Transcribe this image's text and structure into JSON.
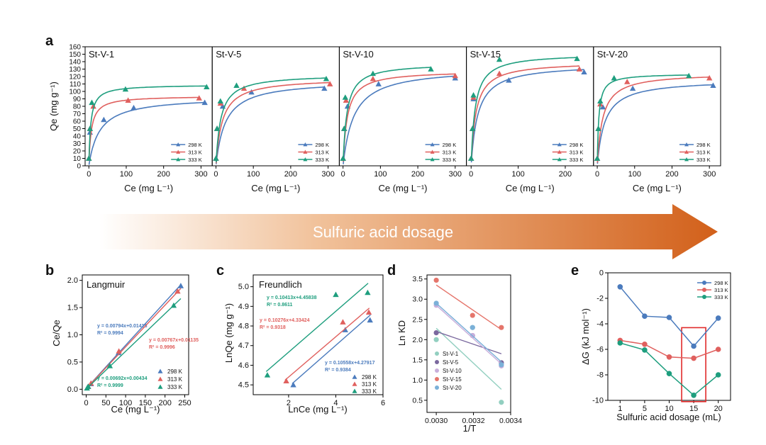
{
  "colors": {
    "k298": "#4b7bbd",
    "k313": "#e0605e",
    "k333": "#1e9e7e",
    "arrow": "#d86a1f",
    "highlight": "#e02a2a"
  },
  "banner": {
    "text": "Sulfuric acid dosage"
  },
  "chart_data": [
    {
      "id": "a",
      "type": "scatter+line",
      "label": "a",
      "ylabel": "Qe (mg g⁻¹)",
      "xlabel": "Ce (mg L⁻¹)",
      "ylim": [
        0,
        160
      ],
      "yticks": [
        0,
        10,
        20,
        30,
        40,
        50,
        60,
        70,
        80,
        90,
        100,
        110,
        120,
        130,
        140,
        150,
        160
      ],
      "legend": [
        "298 K",
        "313 K",
        "333 K"
      ],
      "panels": [
        {
          "name": "St-V-1",
          "xlim": [
            -10,
            330
          ],
          "xticks": [
            0,
            100,
            200,
            300
          ],
          "series": [
            {
              "name": "298 K",
              "x": [
                0,
                3,
                40,
                120,
                310
              ],
              "y": [
                10,
                45,
                62,
                78,
                85
              ],
              "qmax": 93,
              "b": 0.035
            },
            {
              "name": "313 K",
              "x": [
                0,
                3,
                12,
                105,
                295
              ],
              "y": [
                10,
                50,
                80,
                88,
                91
              ],
              "qmax": 94,
              "b": 0.15
            },
            {
              "name": "333 K",
              "x": [
                0,
                3,
                8,
                98,
                315
              ],
              "y": [
                10,
                50,
                85,
                103,
                106
              ],
              "qmax": 109,
              "b": 0.2
            }
          ]
        },
        {
          "name": "St-V-5",
          "xlim": [
            -10,
            330
          ],
          "xticks": [
            0,
            100,
            200,
            300
          ],
          "series": [
            {
              "name": "298 K",
              "x": [
                0,
                3,
                18,
                95,
                290
              ],
              "y": [
                10,
                50,
                80,
                99,
                104
              ],
              "qmax": 115,
              "b": 0.04
            },
            {
              "name": "313 K",
              "x": [
                0,
                3,
                12,
                75,
                305
              ],
              "y": [
                10,
                50,
                84,
                104,
                110
              ],
              "qmax": 118,
              "b": 0.06
            },
            {
              "name": "333 K",
              "x": [
                0,
                3,
                12,
                55,
                295
              ],
              "y": [
                10,
                50,
                87,
                108,
                117
              ],
              "qmax": 123,
              "b": 0.08
            }
          ]
        },
        {
          "name": "St-V-10",
          "xlim": [
            -10,
            330
          ],
          "xticks": [
            0,
            100,
            200,
            300
          ],
          "series": [
            {
              "name": "298 K",
              "x": [
                0,
                3,
                12,
                95,
                300
              ],
              "y": [
                10,
                50,
                80,
                110,
                118
              ],
              "qmax": 132,
              "b": 0.035
            },
            {
              "name": "313 K",
              "x": [
                0,
                3,
                8,
                80,
                300
              ],
              "y": [
                10,
                50,
                88,
                117,
                121
              ],
              "qmax": 128,
              "b": 0.09
            },
            {
              "name": "333 K",
              "x": [
                0,
                3,
                6,
                80,
                235
              ],
              "y": [
                10,
                50,
                92,
                124,
                130
              ],
              "qmax": 138,
              "b": 0.1
            }
          ]
        },
        {
          "name": "St-V-15",
          "xlim": [
            -10,
            260
          ],
          "xticks": [
            0,
            100,
            200
          ],
          "series": [
            {
              "name": "298 K",
              "x": [
                0,
                3,
                5,
                80,
                240
              ],
              "y": [
                10,
                50,
                90,
                115,
                126
              ],
              "qmax": 137,
              "b": 0.07
            },
            {
              "name": "313 K",
              "x": [
                0,
                3,
                5,
                60,
                230
              ],
              "y": [
                10,
                50,
                92,
                124,
                130
              ],
              "qmax": 140,
              "b": 0.1
            },
            {
              "name": "333 K",
              "x": [
                0,
                3,
                5,
                60,
                225
              ],
              "y": [
                10,
                50,
                95,
                143,
                144
              ],
              "qmax": 151,
              "b": 0.12
            }
          ]
        },
        {
          "name": "St-V-20",
          "xlim": [
            -10,
            330
          ],
          "xticks": [
            0,
            100,
            200,
            300
          ],
          "series": [
            {
              "name": "298 K",
              "x": [
                0,
                3,
                15,
                95,
                310
              ],
              "y": [
                10,
                50,
                79,
                104,
                108
              ],
              "qmax": 116,
              "b": 0.05
            },
            {
              "name": "313 K",
              "x": [
                0,
                3,
                8,
                80,
                300
              ],
              "y": [
                10,
                50,
                83,
                113,
                118
              ],
              "qmax": 125,
              "b": 0.07
            },
            {
              "name": "333 K",
              "x": [
                0,
                3,
                8,
                45,
                245
              ],
              "y": [
                10,
                50,
                87,
                118,
                121
              ],
              "qmax": 124,
              "b": 0.25
            }
          ]
        }
      ]
    },
    {
      "id": "b",
      "type": "scatter+line",
      "label": "b",
      "title": "Langmuir",
      "ylabel": "Ce/Qe",
      "xlabel": "Ce (mg L⁻¹)",
      "xlim": [
        -10,
        260
      ],
      "ylim": [
        -0.1,
        2.1
      ],
      "xticks": [
        0,
        50,
        100,
        150,
        200,
        250
      ],
      "yticks": [
        0.0,
        0.5,
        1.0,
        1.5,
        2.0
      ],
      "legend": [
        "298 K",
        "313 K",
        "333 K"
      ],
      "series": [
        {
          "name": "298 K",
          "x": [
            5,
            12,
            82,
            240
          ],
          "y": [
            0.05,
            0.1,
            0.67,
            1.9
          ],
          "slope": 0.00794,
          "intercept": 0.01416,
          "eq": "y = 0.00794x+0.01416",
          "r2": "R² = 0.9994"
        },
        {
          "name": "313 K",
          "x": [
            5,
            12,
            83,
            232
          ],
          "y": [
            0.05,
            0.11,
            0.7,
            1.8
          ],
          "slope": 0.00767,
          "intercept": 0.01135,
          "eq": "y = 0.00767x+0.01135",
          "r2": "R² = 0.9996"
        },
        {
          "name": "333 K",
          "x": [
            2,
            5,
            60,
            222
          ],
          "y": [
            0.02,
            0.05,
            0.43,
            1.54
          ],
          "slope": 0.00692,
          "intercept": 0.00434,
          "eq": "y = 0.00692x+0.00434",
          "r2": "R² = 0.9999"
        }
      ]
    },
    {
      "id": "c",
      "type": "scatter+line",
      "label": "c",
      "title": "Freundlich",
      "ylabel": "LnQe (mg g⁻¹)",
      "xlabel": "LnCe (mg L⁻¹)",
      "xlim": [
        0.5,
        6
      ],
      "ylim": [
        4.45,
        5.06
      ],
      "xticks": [
        2,
        4,
        6
      ],
      "yticks": [
        4.5,
        4.6,
        4.7,
        4.8,
        4.9,
        5.0
      ],
      "legend": [
        "298 K",
        "313 K",
        "333 K"
      ],
      "series": [
        {
          "name": "298 K",
          "x": [
            2.2,
            4.4,
            5.45
          ],
          "y": [
            4.5,
            4.78,
            4.83
          ],
          "slope": 0.10558,
          "intercept": 4.27917,
          "eq": "y = 0.10558x+4.27917",
          "r2": "R² = 0.9384"
        },
        {
          "name": "313 K",
          "x": [
            1.9,
            4.3,
            5.4
          ],
          "y": [
            4.52,
            4.82,
            4.87
          ],
          "slope": 0.10276,
          "intercept": 4.33424,
          "eq": "y = 0.10276x+4.33424",
          "r2": "R² = 0.9318"
        },
        {
          "name": "333 K",
          "x": [
            1.1,
            4.0,
            5.35
          ],
          "y": [
            4.55,
            4.96,
            4.97
          ],
          "slope": 0.10413,
          "intercept": 4.45838,
          "eq": "y = 0.10413x+4.45838",
          "r2": "R² = 0.8611"
        }
      ]
    },
    {
      "id": "d",
      "type": "scatter+line",
      "label": "d",
      "ylabel": "Ln KD",
      "xlabel": "1/T",
      "xlim": [
        0.00295,
        0.0034
      ],
      "ylim": [
        0.2,
        3.6
      ],
      "xticks": [
        0.003,
        0.0032,
        0.0034
      ],
      "xticklabels": [
        "0.0030",
        "0.0032",
        "0.0034"
      ],
      "yticks": [
        0.5,
        1.0,
        1.5,
        2.0,
        2.5,
        3.0,
        3.5
      ],
      "x": [
        0.003,
        0.003195,
        0.00335
      ],
      "series": [
        {
          "name": "St-V-1",
          "color": "#92cfc0",
          "y": [
            2.0,
            2.3,
            0.45
          ],
          "y0": 2.28,
          "y1": 0.77
        },
        {
          "name": "St-V-5",
          "color": "#7a689e",
          "y": [
            2.17,
            2.1,
            1.43
          ],
          "y0": 2.2,
          "y1": 1.65
        },
        {
          "name": "St-V-10",
          "color": "#c8aedb",
          "y": [
            2.85,
            2.1,
            1.35
          ],
          "y0": 2.85,
          "y1": 1.4
        },
        {
          "name": "St-V-15",
          "color": "#e5756b",
          "y": [
            3.47,
            2.6,
            2.3
          ],
          "y0": 3.35,
          "y1": 2.25
        },
        {
          "name": "St-V-20",
          "color": "#7bb0d8",
          "y": [
            2.9,
            2.3,
            1.38
          ],
          "y0": 2.9,
          "y1": 1.45
        }
      ]
    },
    {
      "id": "e",
      "type": "line",
      "label": "e",
      "ylabel": "ΔG (kJ mol⁻¹)",
      "xlabel": "Sulfuric acid dosage (mL)",
      "categories": [
        "1",
        "5",
        "10",
        "15",
        "20"
      ],
      "ylim": [
        -10,
        0
      ],
      "yticks": [
        0,
        -2,
        -4,
        -6,
        -8,
        -10
      ],
      "highlight": "15",
      "series": [
        {
          "name": "298 K",
          "values": [
            -1.1,
            -3.4,
            -3.5,
            -5.75,
            -3.55
          ]
        },
        {
          "name": "313 K",
          "values": [
            -5.3,
            -5.6,
            -6.6,
            -6.7,
            -6.0
          ]
        },
        {
          "name": "333 K",
          "values": [
            -5.5,
            -6.05,
            -7.9,
            -9.6,
            -8.0
          ]
        }
      ]
    }
  ]
}
